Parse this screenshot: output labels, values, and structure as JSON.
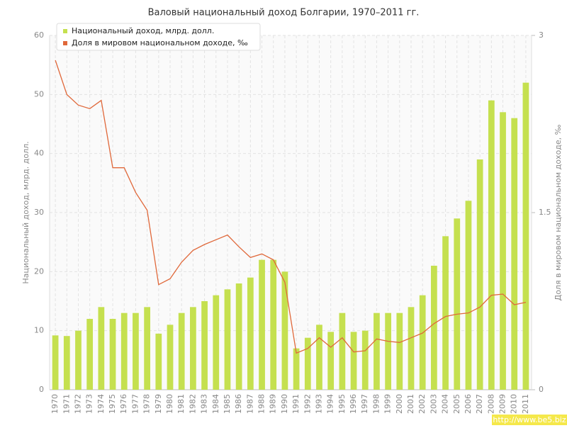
{
  "chart_data": {
    "type": "combo",
    "title": "Валовый национальный доход Болгарии, 1970–2011 гг.",
    "y_label": "Национальный доход, млрд. долл.",
    "y2_label": "Доля в мировом национальном доходе, ‰",
    "watermark": "http://www.be5.biz",
    "categories": [
      "1970",
      "1971",
      "1972",
      "1973",
      "1974",
      "1975",
      "1976",
      "1977",
      "1978",
      "1979",
      "1980",
      "1981",
      "1982",
      "1983",
      "1984",
      "1985",
      "1986",
      "1987",
      "1988",
      "1989",
      "1990",
      "1991",
      "1992",
      "1993",
      "1994",
      "1995",
      "1996",
      "1997",
      "1998",
      "1999",
      "2000",
      "2001",
      "2002",
      "2003",
      "2004",
      "2005",
      "2006",
      "2007",
      "2008",
      "2009",
      "2010",
      "2011"
    ],
    "series": [
      {
        "name": "Национальный доход, млрд. долл.",
        "type": "bar",
        "color": "#c5e04f",
        "values": [
          9.2,
          9.1,
          10,
          12,
          14,
          12,
          13,
          13,
          14,
          9.5,
          11,
          13,
          14,
          15,
          16,
          17,
          18,
          19,
          22,
          22,
          20,
          7,
          8.8,
          11,
          9.8,
          13,
          9.8,
          10,
          13,
          13,
          13,
          14,
          16,
          21,
          26,
          29,
          32,
          39,
          49,
          47,
          46,
          52
        ]
      },
      {
        "name": "Доля в мировом национальном доходе, ‰",
        "type": "line",
        "axis": "y2",
        "color": "#e0683a",
        "values": [
          2.79,
          2.5,
          2.41,
          2.38,
          2.45,
          1.88,
          1.88,
          1.67,
          1.52,
          0.89,
          0.94,
          1.08,
          1.18,
          1.23,
          1.27,
          1.31,
          1.21,
          1.12,
          1.15,
          1.1,
          0.91,
          0.31,
          0.35,
          0.44,
          0.36,
          0.44,
          0.32,
          0.33,
          0.43,
          0.41,
          0.4,
          0.44,
          0.48,
          0.56,
          0.62,
          0.64,
          0.65,
          0.7,
          0.8,
          0.81,
          0.72,
          0.74
        ]
      }
    ],
    "ylim": [
      0,
      60
    ],
    "yticks": [
      0,
      10,
      20,
      30,
      40,
      50,
      60
    ],
    "y2lim": [
      0,
      3
    ],
    "y2ticks": [
      0,
      1.5,
      3
    ],
    "grid": true,
    "legend": "top-left"
  }
}
